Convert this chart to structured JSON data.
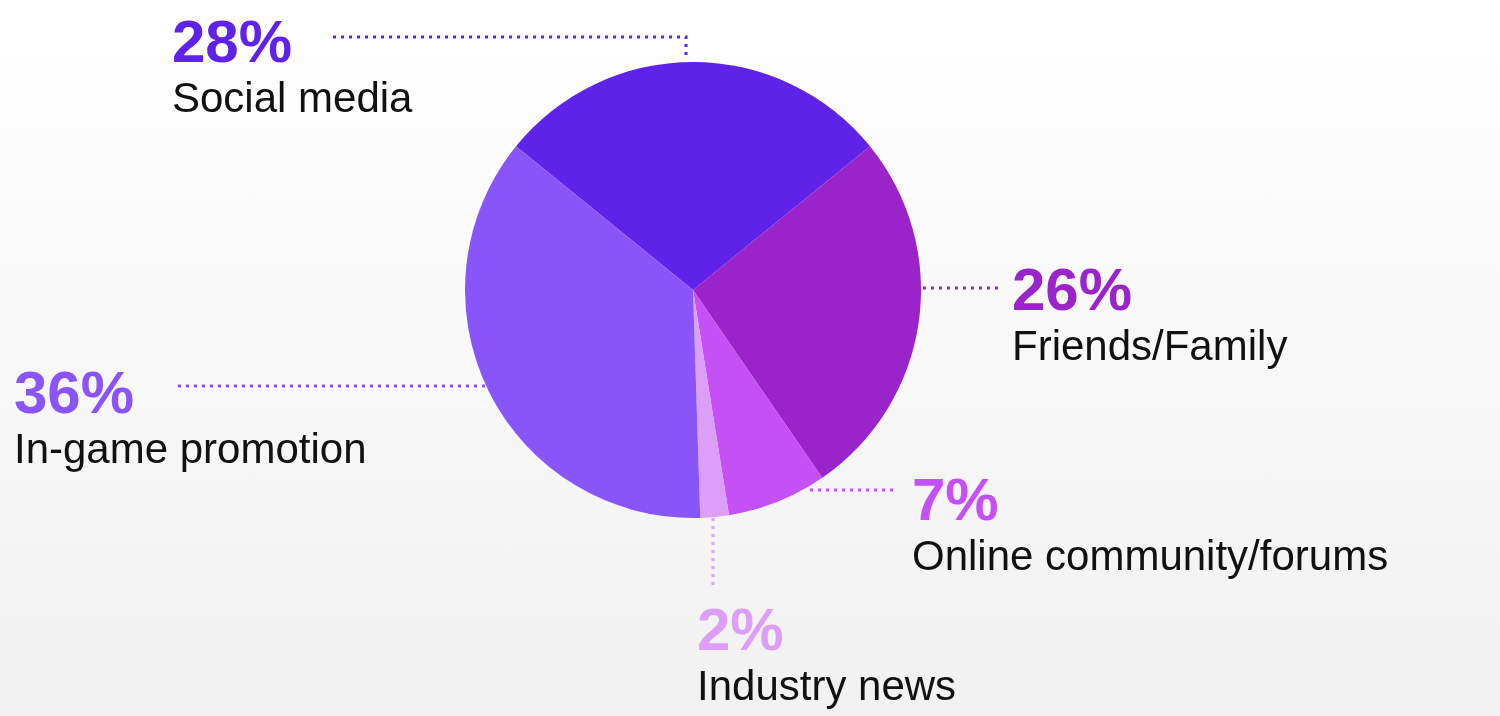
{
  "chart_data": {
    "type": "pie",
    "categories": [
      "Social media",
      "Friends/Family",
      "Online community/forums",
      "Industry news",
      "In-game promotion"
    ],
    "values": [
      28,
      26,
      7,
      2,
      36
    ],
    "value_labels": [
      "28%",
      "26%",
      "7%",
      "2%",
      "36%"
    ],
    "colors": [
      "#5f22e8",
      "#9a24c9",
      "#c550f5",
      "#dd9ef8",
      "#8955f8"
    ]
  }
}
